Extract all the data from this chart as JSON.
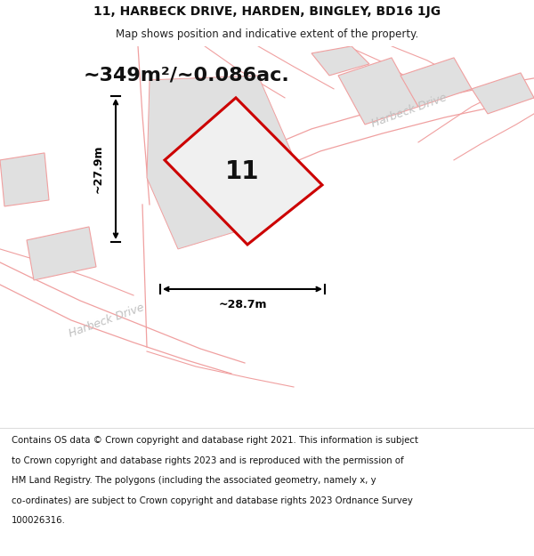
{
  "title_line1": "11, HARBECK DRIVE, HARDEN, BINGLEY, BD16 1JG",
  "title_line2": "Map shows position and indicative extent of the property.",
  "area_text": "~349m²/~0.086ac.",
  "property_number": "11",
  "dim_width": "~28.7m",
  "dim_height": "~27.9m",
  "footer_lines": [
    "Contains OS data © Crown copyright and database right 2021. This information is subject",
    "to Crown copyright and database rights 2023 and is reproduced with the permission of",
    "HM Land Registry. The polygons (including the associated geometry, namely x, y",
    "co-ordinates) are subject to Crown copyright and database rights 2023 Ordnance Survey",
    "100026316."
  ],
  "map_bg": "#ffffff",
  "plot_fill": "#f0f0f0",
  "plot_stroke": "#cc0000",
  "nearby_fill": "#e0e0e0",
  "nearby_stroke": "#f0a0a0",
  "road_stroke": "#f0a0a0",
  "parcel_stroke": "#f0a0a0",
  "footer_bg": "#ffffff",
  "header_bg": "#ffffff",
  "dim_color": "#000000",
  "area_fontsize": 16,
  "prop_num_fontsize": 20,
  "road_label_color": "#c0c0c0",
  "road_label_fontsize": 9
}
